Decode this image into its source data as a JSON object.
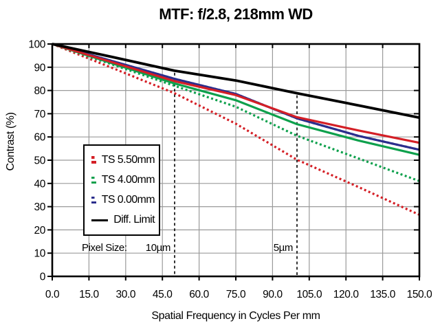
{
  "chart_data": {
    "type": "line",
    "title": "MTF: f/2.8, 218mm WD",
    "xlabel": "Spatial Frequency in Cycles Per mm",
    "ylabel": "Contrast (%)",
    "xlim": [
      0,
      150
    ],
    "ylim": [
      0,
      100
    ],
    "xticks": [
      "0.0",
      "15.0",
      "30.0",
      "45.0",
      "60.0",
      "75.0",
      "90.0",
      "105.0",
      "120.0",
      "135.0",
      "150.0"
    ],
    "yticks": [
      "0",
      "10",
      "20",
      "30",
      "40",
      "50",
      "60",
      "70",
      "80",
      "90",
      "100"
    ],
    "grid": true,
    "legend_position": "middle-left",
    "x": [
      0,
      25,
      50,
      75,
      100,
      125,
      150
    ],
    "series": [
      {
        "name": "T 5.50mm",
        "color": "#d41f26",
        "style": "dashed",
        "values": [
          100,
          89.5,
          78.8,
          65.7,
          50.2,
          38.5,
          26.5
        ]
      },
      {
        "name": "T 4.00mm",
        "color": "#0da04c",
        "style": "dashed",
        "values": [
          100,
          91.0,
          82.0,
          73.0,
          60.5,
          50.8,
          41.0
        ]
      },
      {
        "name": "T 0.00mm",
        "color": "#2b2e8c",
        "style": "dashed",
        "values": [
          100,
          92.5,
          85.0,
          78.5,
          68.0,
          60.5,
          54.5
        ]
      },
      {
        "name": "S 4.00mm",
        "color": "#0da04c",
        "style": "solid",
        "values": [
          100,
          91.5,
          83.0,
          75.8,
          65.5,
          58.5,
          52.3
        ]
      },
      {
        "name": "S 0.00mm",
        "color": "#2b2e8c",
        "style": "solid",
        "values": [
          100,
          92.5,
          85.0,
          78.5,
          68.0,
          60.5,
          54.5
        ]
      },
      {
        "name": "S 5.50mm",
        "color": "#d41f26",
        "style": "solid",
        "values": [
          100,
          92.0,
          84.0,
          78.0,
          68.5,
          62.8,
          57.5
        ]
      },
      {
        "name": "Diff. Limit",
        "color": "#000000",
        "style": "solid",
        "values": [
          100,
          94.3,
          88.5,
          84.3,
          78.8,
          73.6,
          68.3
        ]
      }
    ],
    "legend": [
      {
        "label": "TS 5.50mm",
        "color": "#d41f26",
        "swatch": "dashed+solid"
      },
      {
        "label": "TS 4.00mm",
        "color": "#0da04c",
        "swatch": "dashed+solid"
      },
      {
        "label": "TS 0.00mm",
        "color": "#2b2e8c",
        "swatch": "dashed+solid"
      },
      {
        "label": "Diff. Limit",
        "color": "#000000",
        "swatch": "solid"
      }
    ],
    "pixel_markers": {
      "label": "Pixel Size:",
      "items": [
        {
          "label": "10µm",
          "x": 50
        },
        {
          "label": "5µm",
          "x": 100
        }
      ]
    }
  },
  "colors": {
    "background": "#ffffff",
    "grid": "#9a9a9a",
    "axis": "#000000",
    "marker_line": "#000000"
  }
}
